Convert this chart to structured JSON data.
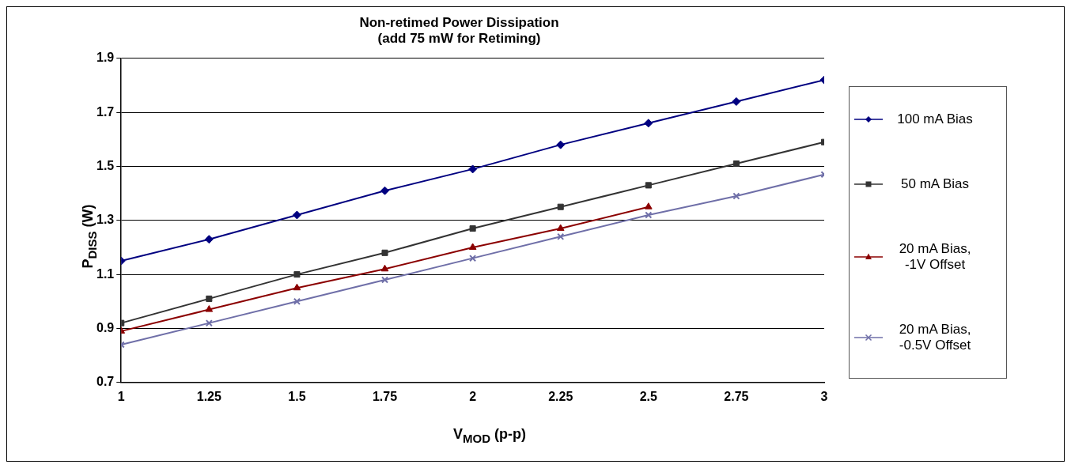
{
  "chart_data": {
    "type": "line",
    "title": "Non-retimed Power Dissipation",
    "subtitle": "(add 75 mW for Retiming)",
    "xlabel": "V$_{MOD}$ (p-p)",
    "ylabel": "P$_{DISS}$ (W)",
    "x": [
      1,
      1.25,
      1.5,
      1.75,
      2,
      2.25,
      2.5,
      2.75,
      3
    ],
    "series": [
      {
        "name": "100 mA Bias",
        "color": "#000080",
        "marker": "diamond",
        "values": [
          1.15,
          1.23,
          1.32,
          1.41,
          1.49,
          1.58,
          1.66,
          1.74,
          1.82
        ]
      },
      {
        "name": "50 mA Bias",
        "color": "#333333",
        "marker": "square",
        "values": [
          0.92,
          1.01,
          1.1,
          1.18,
          1.27,
          1.35,
          1.43,
          1.51,
          1.59
        ]
      },
      {
        "name": "20 mA Bias, -1V Offset",
        "color": "#8b0000",
        "marker": "triangle",
        "values": [
          0.89,
          0.97,
          1.05,
          1.12,
          1.2,
          1.27,
          1.35,
          null,
          null
        ]
      },
      {
        "name": "20 mA Bias, -0.5V Offset",
        "color": "#6f6fa8",
        "marker": "cross",
        "values": [
          0.84,
          0.92,
          1.0,
          1.08,
          1.16,
          1.24,
          1.32,
          1.39,
          1.47
        ]
      }
    ],
    "xlim": [
      1,
      3
    ],
    "xticks": [
      1,
      1.25,
      1.5,
      1.75,
      2,
      2.25,
      2.5,
      2.75,
      3
    ],
    "ylim": [
      0.7,
      1.9
    ],
    "yticks": [
      0.7,
      0.9,
      1.1,
      1.3,
      1.5,
      1.7,
      1.9
    ],
    "grid": "y",
    "legend": "right"
  }
}
